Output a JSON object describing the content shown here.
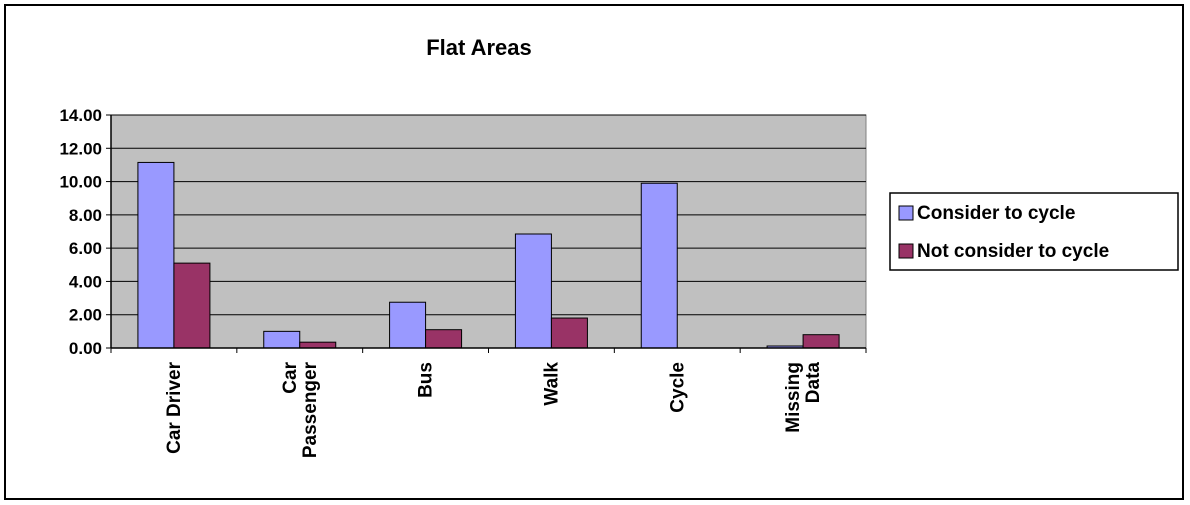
{
  "chart_data": {
    "type": "bar",
    "title": "Flat Areas",
    "xlabel": "",
    "ylabel": "",
    "categories": [
      [
        "Car Driver"
      ],
      [
        "Car",
        "Passenger"
      ],
      [
        "Bus"
      ],
      [
        "Walk"
      ],
      [
        "Cycle"
      ],
      [
        "Missing",
        "Data"
      ]
    ],
    "series": [
      {
        "name": "Consider to cycle",
        "color": "#9999ff",
        "values": [
          11.15,
          1.0,
          2.75,
          6.85,
          9.9,
          0.12
        ]
      },
      {
        "name": "Not consider to cycle",
        "color": "#993366",
        "values": [
          5.1,
          0.35,
          1.1,
          1.8,
          0.0,
          0.8
        ]
      }
    ],
    "ylim": [
      0,
      14
    ],
    "yticks": [
      "0.00",
      "2.00",
      "4.00",
      "6.00",
      "8.00",
      "10.00",
      "12.00",
      "14.00"
    ],
    "grid": true,
    "plot_background": "#c0c0c0",
    "legend_position": "right"
  }
}
